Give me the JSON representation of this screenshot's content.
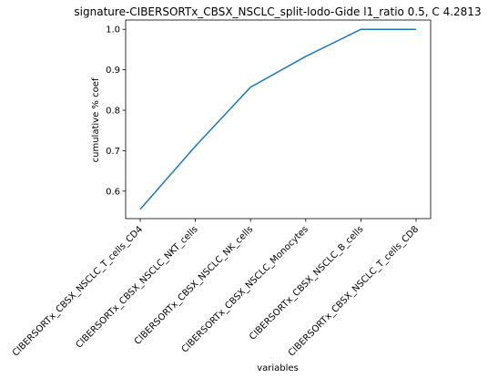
{
  "chart_data": {
    "type": "line",
    "title": "signature-CIBERSORTx_CBSX_NSCLC_split-lodo-Gide l1_ratio 0.5, C 4.2813",
    "xlabel": "variables",
    "ylabel": "cumulative % coef",
    "categories": [
      "CIBERSORTx_CBSX_NSCLC_T_cells_CD4",
      "CIBERSORTx_CBSX_NSCLC_NKT_cells",
      "CIBERSORTx_CBSX_NSCLC_NK_cells",
      "CIBERSORTx_CBSX_NSCLC_Monocytes",
      "CIBERSORTx_CBSX_NSCLC_B_cells",
      "CIBERSORTx_CBSX_NSCLC_T_cells_CD8"
    ],
    "series": [
      {
        "values": [
          0.555,
          0.711,
          0.857,
          0.933,
          1.0,
          1.0
        ]
      }
    ],
    "yticks": [
      "0.6",
      "0.7",
      "0.8",
      "0.9",
      "1.0"
    ],
    "ylim": [
      0.532,
      1.023
    ],
    "grid": false,
    "line_color": "#1f77b4"
  }
}
